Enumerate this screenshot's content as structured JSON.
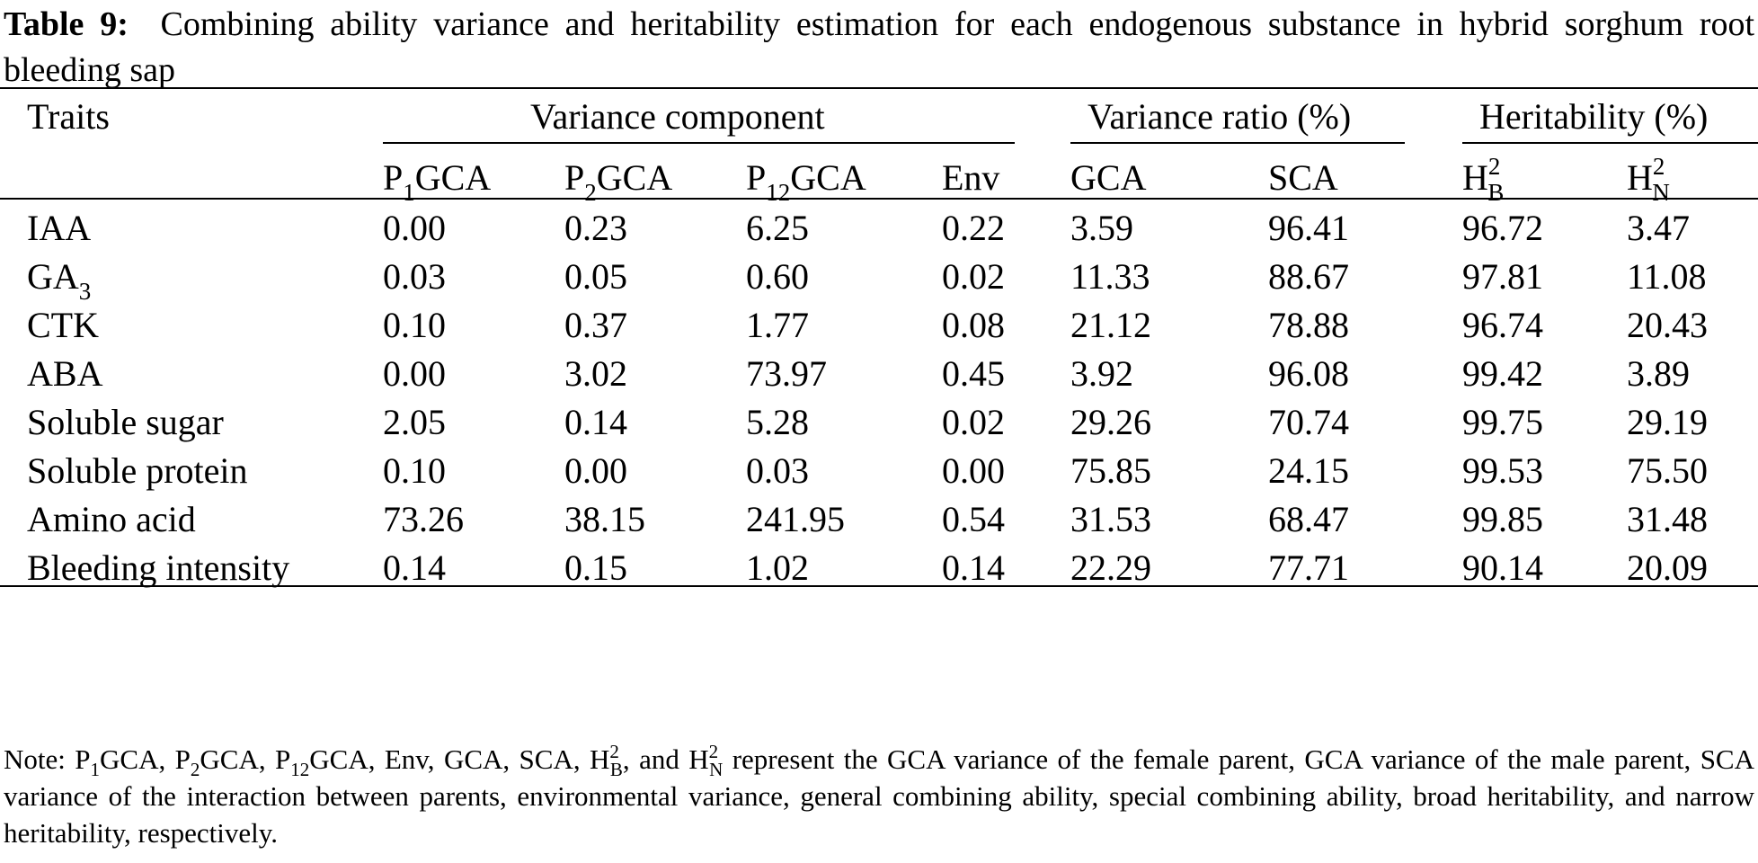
{
  "caption": {
    "label": "Table 9:",
    "text": "Combining ability variance and heritability estimation for each endogenous substance in hybrid sorghum root bleeding sap"
  },
  "headers": {
    "traits": "Traits",
    "group_variance": "Variance component",
    "group_ratio": "Variance ratio (%)",
    "group_heritability": "Heritability (%)",
    "p1gca": {
      "base": "P",
      "sub": "1",
      "rest": "GCA"
    },
    "p2gca": {
      "base": "P",
      "sub": "2",
      "rest": "GCA"
    },
    "p12gca": {
      "base": "P",
      "sub": "12",
      "rest": "GCA"
    },
    "env": "Env",
    "gca": "GCA",
    "sca": "SCA",
    "h2b": {
      "base": "H",
      "sup": "2",
      "sub": "B"
    },
    "h2n": {
      "base": "H",
      "sup": "2",
      "sub": "N"
    }
  },
  "rows": [
    {
      "trait": "IAA",
      "trait_sub": "",
      "values": [
        "0.00",
        "0.23",
        "6.25",
        "0.22",
        "3.59",
        "96.41",
        "96.72",
        "3.47"
      ]
    },
    {
      "trait": "GA",
      "trait_sub": "3",
      "values": [
        "0.03",
        "0.05",
        "0.60",
        "0.02",
        "11.33",
        "88.67",
        "97.81",
        "11.08"
      ]
    },
    {
      "trait": "CTK",
      "trait_sub": "",
      "values": [
        "0.10",
        "0.37",
        "1.77",
        "0.08",
        "21.12",
        "78.88",
        "96.74",
        "20.43"
      ]
    },
    {
      "trait": "ABA",
      "trait_sub": "",
      "values": [
        "0.00",
        "3.02",
        "73.97",
        "0.45",
        "3.92",
        "96.08",
        "99.42",
        "3.89"
      ]
    },
    {
      "trait": "Soluble sugar",
      "trait_sub": "",
      "values": [
        "2.05",
        "0.14",
        "5.28",
        "0.02",
        "29.26",
        "70.74",
        "99.75",
        "29.19"
      ]
    },
    {
      "trait": "Soluble protein",
      "trait_sub": "",
      "values": [
        "0.10",
        "0.00",
        "0.03",
        "0.00",
        "75.85",
        "24.15",
        "99.53",
        "75.50"
      ]
    },
    {
      "trait": "Amino acid",
      "trait_sub": "",
      "values": [
        "73.26",
        "38.15",
        "241.95",
        "0.54",
        "31.53",
        "68.47",
        "99.85",
        "31.48"
      ]
    },
    {
      "trait": "Bleeding intensity",
      "trait_sub": "",
      "values": [
        "0.14",
        "0.15",
        "1.02",
        "0.14",
        "22.29",
        "77.71",
        "90.14",
        "20.09"
      ]
    }
  ],
  "note": {
    "n1": "Note: P",
    "n1s": "1",
    "n2": "GCA, P",
    "n2s": "2",
    "n3": "GCA, P",
    "n3s": "12",
    "n4": "GCA, Env, GCA, SCA, H",
    "n4p": "2",
    "n4s": "B",
    "n5": ", and H",
    "n5p": "2",
    "n5s": "N",
    "n6": " represent the GCA variance of the female parent, GCA variance of the male parent, SCA variance of the interaction between parents, environmental variance, general combining ability, special combining ability, broad heritability, and narrow heritability, respectively."
  }
}
